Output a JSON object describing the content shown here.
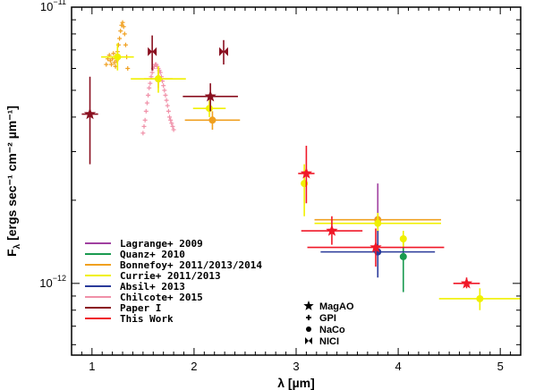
{
  "chart_data": {
    "type": "scatter",
    "xlabel": "λ [µm]",
    "ylabel": "F_λ [ergs sec⁻¹ cm⁻² µm⁻¹]",
    "ylabel_main": "F",
    "ylabel_sub": "λ",
    "ylabel_rest": " [ergs sec⁻¹ cm⁻² µm⁻¹]",
    "xlim": [
      0.8,
      5.2
    ],
    "ylim": [
      5.5e-13,
      1e-11
    ],
    "yscale": "log",
    "x_ticks": [
      1,
      2,
      3,
      4,
      5
    ],
    "x_tick_labels": [
      "1",
      "2",
      "3",
      "4",
      "5"
    ],
    "y_ticks": [
      1e-12,
      1e-11
    ],
    "y_tick_labels_base": [
      "10",
      "10"
    ],
    "y_tick_labels_exp": [
      "−12",
      "−11"
    ],
    "legend": [
      {
        "name": "Lagrange+ 2009",
        "color": "#a040a0"
      },
      {
        "name": "Quanz+ 2010",
        "color": "#1a9a50"
      },
      {
        "name": "Bonnefoy+ 2011/2013/2014",
        "color": "#f0a020"
      },
      {
        "name": "Currie+ 2011/2013",
        "color": "#f0f000"
      },
      {
        "name": "Absil+ 2013",
        "color": "#2a3a9a"
      },
      {
        "name": "Chilcote+ 2015",
        "color": "#f090a8"
      },
      {
        "name": "Paper I",
        "color": "#8a1020"
      },
      {
        "name": "This Work",
        "color": "#f01828"
      }
    ],
    "marker_legend": [
      {
        "name": "MagAO",
        "marker": "star"
      },
      {
        "name": "GPI",
        "marker": "plus"
      },
      {
        "name": "NaCo",
        "marker": "circle"
      },
      {
        "name": "NICI",
        "marker": "bowtie"
      }
    ],
    "series": [
      {
        "name": "Lagrange+ 2009",
        "color": "#a040a0",
        "points": [
          {
            "x": 3.8,
            "y": 1.7e-12,
            "xerr": 0.0,
            "ylo": 1.3e-12,
            "yhi": 2.3e-12,
            "marker": "circle"
          }
        ]
      },
      {
        "name": "Quanz+ 2010",
        "color": "#1a9a50",
        "points": [
          {
            "x": 4.05,
            "y": 1.25e-12,
            "xerr": 0.0,
            "ylo": 9.3e-13,
            "yhi": 1.45e-12,
            "marker": "circle"
          }
        ]
      },
      {
        "name": "Bonnefoy+ 2011/2013/2014",
        "color": "#f0a020",
        "points": [
          {
            "x": 1.65,
            "y": 5.5e-12,
            "xerr": 0.14,
            "ylo": 5.1e-12,
            "yhi": 5.9e-12,
            "marker": "circle"
          },
          {
            "x": 2.18,
            "y": 3.9e-12,
            "xerr": 0.27,
            "ylo": 3.6e-12,
            "yhi": 4.2e-12,
            "marker": "circle"
          },
          {
            "x": 3.8,
            "y": 1.7e-12,
            "xerr": 0.62,
            "ylo": 1.6e-12,
            "yhi": 1.8e-12,
            "marker": "circle"
          }
        ]
      },
      {
        "name": "Currie+ 2011/2013",
        "color": "#f0f000",
        "points": [
          {
            "x": 1.25,
            "y": 6.6e-12,
            "xerr": 0.16,
            "ylo": 5.9e-12,
            "yhi": 7.4e-12,
            "marker": "circle"
          },
          {
            "x": 1.65,
            "y": 5.5e-12,
            "xerr": 0.27,
            "ylo": 4.9e-12,
            "yhi": 6.1e-12,
            "marker": "circle"
          },
          {
            "x": 2.15,
            "y": 4.3e-12,
            "xerr": 0.16,
            "ylo": 4e-12,
            "yhi": 4.6e-12,
            "marker": "circle"
          },
          {
            "x": 3.08,
            "y": 2.3e-12,
            "xerr": 0.0,
            "ylo": 1.75e-12,
            "yhi": 2.7e-12,
            "marker": "circle"
          },
          {
            "x": 3.8,
            "y": 1.65e-12,
            "xerr": 0.62,
            "ylo": 1.5e-12,
            "yhi": 1.8e-12,
            "marker": "circle"
          },
          {
            "x": 4.05,
            "y": 1.45e-12,
            "xerr": 0.0,
            "ylo": 1.35e-12,
            "yhi": 1.55e-12,
            "marker": "circle"
          },
          {
            "x": 4.8,
            "y": 8.8e-13,
            "xerr": 0.4,
            "ylo": 8e-13,
            "yhi": 9.6e-13,
            "marker": "circle"
          }
        ]
      },
      {
        "name": "Absil+ 2013",
        "color": "#2a3a9a",
        "points": [
          {
            "x": 3.8,
            "y": 1.3e-12,
            "xerr": 0.56,
            "ylo": 1.05e-12,
            "yhi": 1.55e-12,
            "marker": "circle"
          }
        ]
      },
      {
        "name": "Paper I",
        "color": "#8a1020",
        "points": [
          {
            "x": 0.98,
            "y": 4.1e-12,
            "xerr": 0.08,
            "ylo": 2.7e-12,
            "yhi": 5.6e-12,
            "marker": "star"
          },
          {
            "x": 1.59,
            "y": 6.9e-12,
            "xerr": 0.0,
            "ylo": 5.9e-12,
            "yhi": 7.9e-12,
            "marker": "bowtie"
          },
          {
            "x": 2.16,
            "y": 4.75e-12,
            "xerr": 0.27,
            "ylo": 4.2e-12,
            "yhi": 5.3e-12,
            "marker": "star"
          },
          {
            "x": 2.29,
            "y": 6.9e-12,
            "xerr": 0.0,
            "ylo": 6.2e-12,
            "yhi": 7.6e-12,
            "marker": "bowtie"
          }
        ]
      },
      {
        "name": "This Work",
        "color": "#f01828",
        "points": [
          {
            "x": 3.1,
            "y": 2.5e-12,
            "xerr": 0.08,
            "ylo": 1.95e-12,
            "yhi": 3.15e-12,
            "marker": "star"
          },
          {
            "x": 3.35,
            "y": 1.55e-12,
            "xerr": 0.3,
            "ylo": 1.38e-12,
            "yhi": 1.75e-12,
            "marker": "star"
          },
          {
            "x": 3.78,
            "y": 1.35e-12,
            "xerr": 0.67,
            "ylo": 1.15e-12,
            "yhi": 1.58e-12,
            "marker": "star"
          },
          {
            "x": 4.67,
            "y": 1e-12,
            "xerr": 0.13,
            "ylo": 9.6e-13,
            "yhi": 1.05e-12,
            "marker": "star"
          }
        ]
      }
    ],
    "spectra": [
      {
        "name": "Chilcote+ 2015",
        "band": "J",
        "color": "#f0a020",
        "points": [
          [
            1.14,
            6.2e-12
          ],
          [
            1.155,
            6.5e-12
          ],
          [
            1.17,
            6.7e-12
          ],
          [
            1.18,
            6.4e-12
          ],
          [
            1.19,
            6.2e-12
          ],
          [
            1.2,
            6.5e-12
          ],
          [
            1.21,
            6.8e-12
          ],
          [
            1.22,
            6.3e-12
          ],
          [
            1.23,
            6.1e-12
          ],
          [
            1.24,
            6.4e-12
          ],
          [
            1.25,
            6.9e-12
          ],
          [
            1.26,
            7.3e-12
          ],
          [
            1.27,
            7.7e-12
          ],
          [
            1.28,
            8.2e-12
          ],
          [
            1.29,
            8.6e-12
          ],
          [
            1.3,
            8.8e-12
          ],
          [
            1.31,
            8.5e-12
          ],
          [
            1.32,
            8e-12
          ],
          [
            1.33,
            7.3e-12
          ],
          [
            1.34,
            6.6e-12
          ],
          [
            1.35,
            6e-12
          ]
        ]
      },
      {
        "name": "Chilcote+ 2015",
        "band": "H",
        "color": "#f090a8",
        "points": [
          [
            1.5,
            3.5e-12
          ],
          [
            1.51,
            3.7e-12
          ],
          [
            1.52,
            3.9e-12
          ],
          [
            1.53,
            4.2e-12
          ],
          [
            1.54,
            4.5e-12
          ],
          [
            1.55,
            4.8e-12
          ],
          [
            1.56,
            5.1e-12
          ],
          [
            1.57,
            5.3e-12
          ],
          [
            1.58,
            5.6e-12
          ],
          [
            1.59,
            5.8e-12
          ],
          [
            1.6,
            6e-12
          ],
          [
            1.61,
            6.1e-12
          ],
          [
            1.62,
            6.2e-12
          ],
          [
            1.63,
            6.2e-12
          ],
          [
            1.64,
            6.1e-12
          ],
          [
            1.65,
            6e-12
          ],
          [
            1.66,
            5.9e-12
          ],
          [
            1.67,
            5.8e-12
          ],
          [
            1.68,
            5.6e-12
          ],
          [
            1.69,
            5.4e-12
          ],
          [
            1.7,
            5.2e-12
          ],
          [
            1.71,
            5e-12
          ],
          [
            1.72,
            4.8e-12
          ],
          [
            1.73,
            4.6e-12
          ],
          [
            1.74,
            4.4e-12
          ],
          [
            1.75,
            4.2e-12
          ],
          [
            1.76,
            4e-12
          ],
          [
            1.77,
            3.9e-12
          ],
          [
            1.78,
            3.8e-12
          ],
          [
            1.79,
            3.7e-12
          ],
          [
            1.8,
            3.6e-12
          ]
        ]
      }
    ]
  }
}
